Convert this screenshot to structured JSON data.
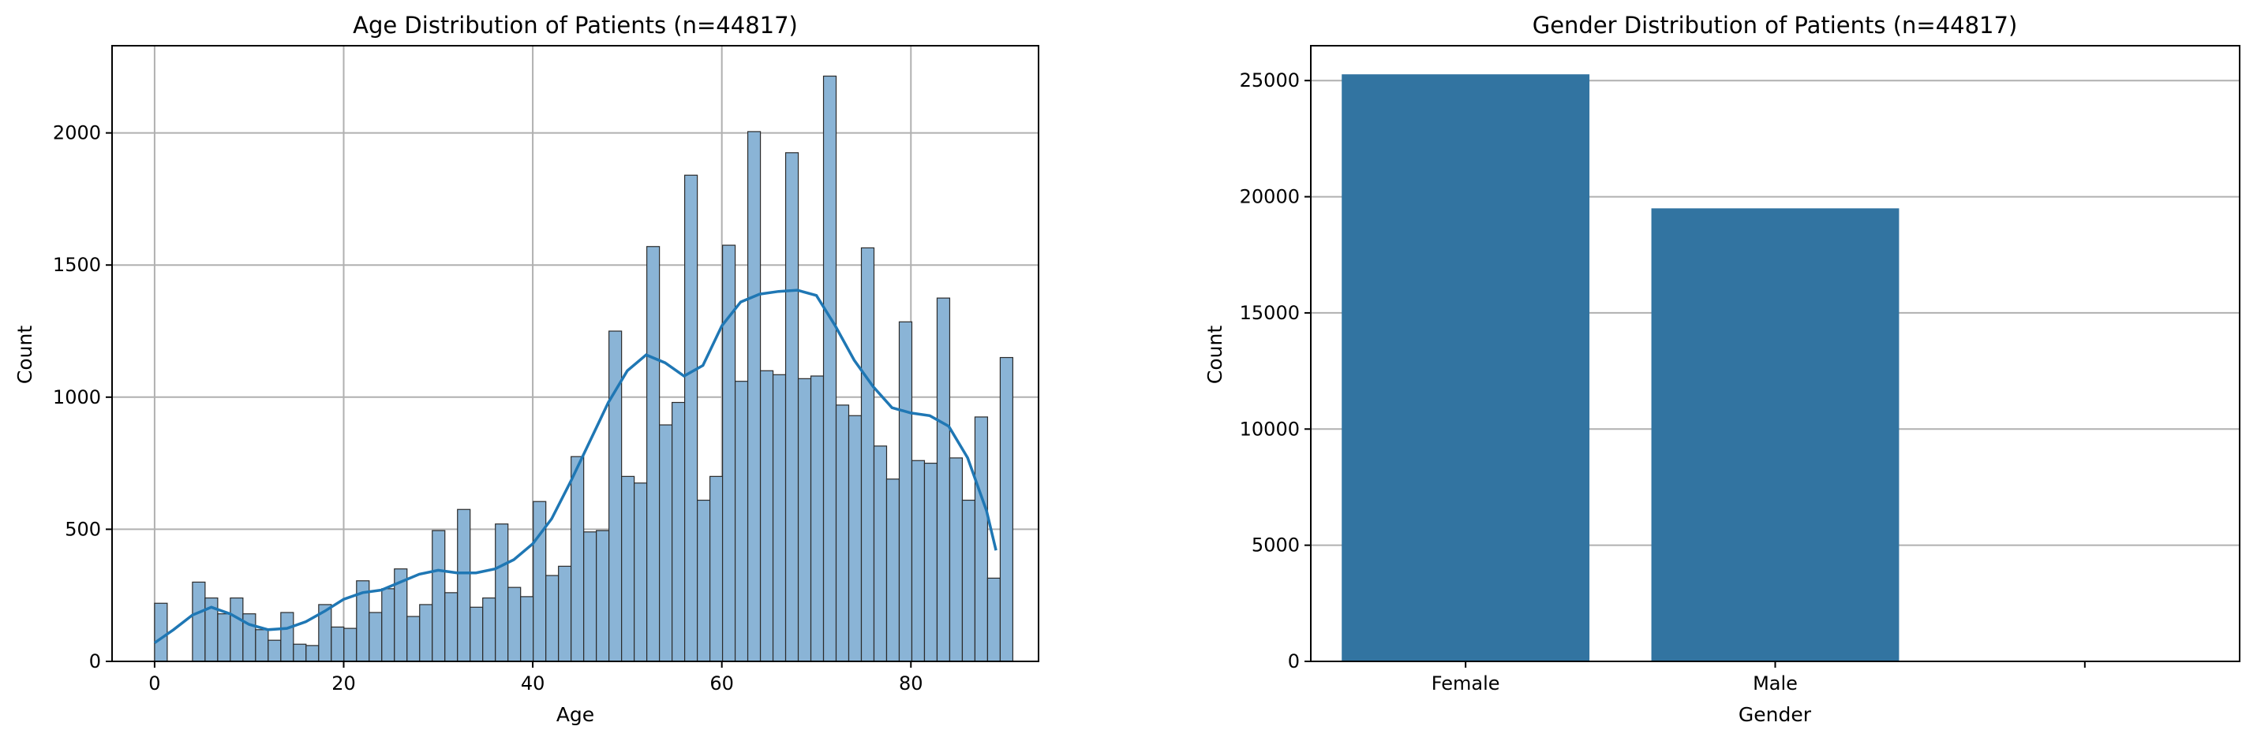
{
  "chart_data": [
    {
      "type": "histogram",
      "title": "Age Distribution of Patients (n=44817)",
      "xlabel": "Age",
      "ylabel": "Count",
      "xlim": [
        -4.5,
        93.5
      ],
      "ylim": [
        0,
        2330
      ],
      "xticks": [
        0,
        20,
        40,
        60,
        80
      ],
      "yticks": [
        0,
        500,
        1000,
        1500,
        2000
      ],
      "grid": true,
      "bin_start": 0,
      "bin_width": 1.335,
      "counts": [
        220,
        0,
        0,
        300,
        240,
        180,
        240,
        180,
        120,
        80,
        185,
        65,
        60,
        215,
        130,
        125,
        305,
        185,
        275,
        350,
        170,
        215,
        495,
        260,
        575,
        205,
        240,
        520,
        280,
        245,
        605,
        325,
        360,
        775,
        490,
        495,
        1250,
        700,
        675,
        1570,
        895,
        980,
        1840,
        610,
        700,
        1575,
        1060,
        2005,
        1100,
        1085,
        1925,
        1070,
        1080,
        2215,
        970,
        930,
        1565,
        815,
        690,
        1285,
        760,
        750,
        1375,
        770,
        610,
        925,
        315,
        1150
      ],
      "kde": {
        "x": [
          0,
          2,
          4,
          6,
          8,
          10,
          12,
          14,
          16,
          18,
          20,
          22,
          24,
          26,
          28,
          30,
          32,
          34,
          36,
          38,
          40,
          42,
          44,
          46,
          48,
          50,
          52,
          54,
          56,
          58,
          60,
          62,
          64,
          66,
          68,
          70,
          72,
          74,
          76,
          78,
          80,
          82,
          84,
          86,
          88,
          89
        ],
        "y": [
          70,
          120,
          175,
          205,
          180,
          140,
          120,
          125,
          150,
          190,
          235,
          260,
          270,
          300,
          330,
          345,
          335,
          335,
          350,
          385,
          445,
          540,
          680,
          830,
          980,
          1100,
          1160,
          1130,
          1080,
          1120,
          1270,
          1360,
          1390,
          1400,
          1405,
          1385,
          1270,
          1140,
          1040,
          960,
          940,
          930,
          890,
          770,
          570,
          420
        ]
      },
      "bar_color": "#8ab4d6",
      "line_color": "#1f77b4"
    },
    {
      "type": "bar",
      "title": "Gender Distribution of Patients (n=44817)",
      "xlabel": "Gender",
      "ylabel": "Count",
      "categories": [
        "Female",
        "Male",
        ""
      ],
      "values": [
        25270,
        19500,
        0
      ],
      "ylim": [
        0,
        26500
      ],
      "yticks": [
        0,
        5000,
        10000,
        15000,
        20000,
        25000
      ],
      "grid": true,
      "bar_color": "#3274a1"
    }
  ]
}
